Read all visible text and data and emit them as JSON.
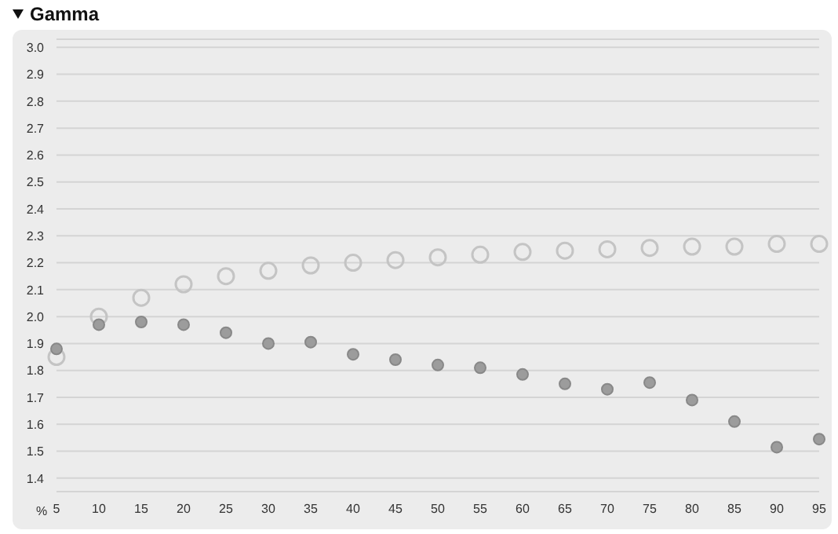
{
  "chart_data": {
    "type": "scatter",
    "title": "Gamma",
    "xlabel": "%",
    "categories": [
      "5",
      "10",
      "15",
      "20",
      "25",
      "30",
      "35",
      "40",
      "45",
      "50",
      "55",
      "60",
      "65",
      "70",
      "75",
      "80",
      "85",
      "90",
      "95"
    ],
    "series": [
      {
        "color": "#c4c4c4",
        "values": [
          1.85,
          2.0,
          2.07,
          2.12,
          2.15,
          2.17,
          2.19,
          2.2,
          2.21,
          2.22,
          2.23,
          2.24,
          2.245,
          2.25,
          2.255,
          2.26,
          2.26,
          2.27,
          2.27
        ]
      },
      {
        "color": "#9c9c9c",
        "values": [
          1.88,
          1.97,
          1.98,
          1.97,
          1.94,
          1.9,
          1.905,
          1.86,
          1.84,
          1.82,
          1.81,
          1.785,
          1.75,
          1.73,
          1.755,
          1.69,
          1.61,
          1.515,
          1.545
        ]
      }
    ],
    "ylim": [
      1.35,
      3.03
    ],
    "yticks": [
      1.4,
      1.5,
      1.6,
      1.7,
      1.8,
      1.9,
      {
        "value": 2,
        "label": "2.0"
      },
      2.1,
      2.2,
      2.3,
      2.4,
      2.5,
      2.6,
      2.7,
      2.8,
      2.9,
      {
        "value": 3,
        "label": "3.0"
      }
    ],
    "grid": "y",
    "marker": "circle",
    "legend": false
  }
}
